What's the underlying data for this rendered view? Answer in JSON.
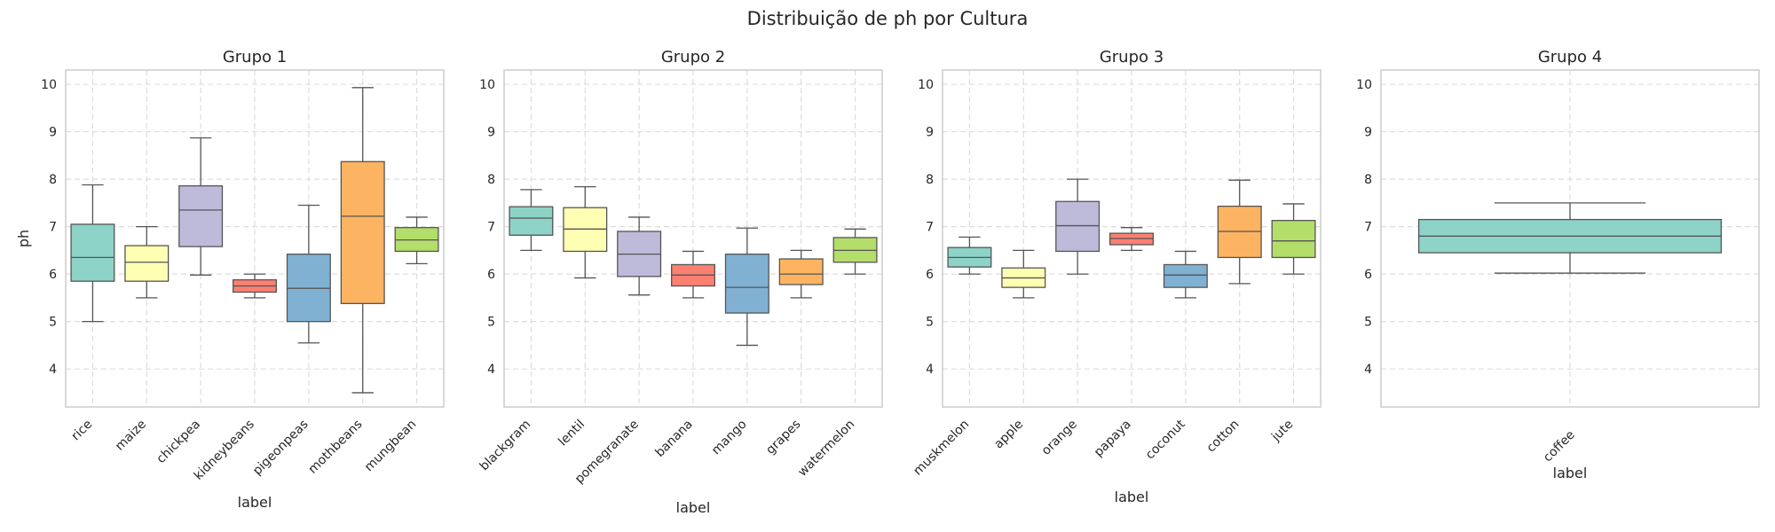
{
  "chart_data": {
    "type": "box",
    "title": "Distribuição de ph por Cultura",
    "ylabel": "ph",
    "xlabel": "label",
    "ylim": [
      3.2,
      10.3
    ],
    "yticks": [
      4,
      5,
      6,
      7,
      8,
      9,
      10
    ],
    "grid": true,
    "palette": [
      "#8dd3c7",
      "#ffffb3",
      "#bebada",
      "#fb8072",
      "#80b1d3",
      "#fdb462",
      "#b3de69"
    ],
    "panels": [
      {
        "title": "Grupo 1",
        "categories": [
          {
            "label": "rice",
            "min": 5.0,
            "q1": 5.85,
            "median": 6.35,
            "q3": 7.05,
            "max": 7.88
          },
          {
            "label": "maize",
            "min": 5.5,
            "q1": 5.85,
            "median": 6.25,
            "q3": 6.6,
            "max": 7.0
          },
          {
            "label": "chickpea",
            "min": 5.98,
            "q1": 6.58,
            "median": 7.35,
            "q3": 7.86,
            "max": 8.87
          },
          {
            "label": "kidneybeans",
            "min": 5.5,
            "q1": 5.62,
            "median": 5.75,
            "q3": 5.88,
            "max": 6.0
          },
          {
            "label": "pigeonpeas",
            "min": 4.55,
            "q1": 5.0,
            "median": 5.7,
            "q3": 6.42,
            "max": 7.45
          },
          {
            "label": "mothbeans",
            "min": 3.5,
            "q1": 5.38,
            "median": 7.22,
            "q3": 8.37,
            "max": 9.93
          },
          {
            "label": "mungbean",
            "min": 6.22,
            "q1": 6.48,
            "median": 6.72,
            "q3": 6.98,
            "max": 7.2
          }
        ]
      },
      {
        "title": "Grupo 2",
        "categories": [
          {
            "label": "blackgram",
            "min": 6.5,
            "q1": 6.82,
            "median": 7.18,
            "q3": 7.42,
            "max": 7.78
          },
          {
            "label": "lentil",
            "min": 5.92,
            "q1": 6.48,
            "median": 6.95,
            "q3": 7.4,
            "max": 7.84
          },
          {
            "label": "pomegranate",
            "min": 5.56,
            "q1": 5.95,
            "median": 6.42,
            "q3": 6.9,
            "max": 7.2
          },
          {
            "label": "banana",
            "min": 5.5,
            "q1": 5.75,
            "median": 5.98,
            "q3": 6.2,
            "max": 6.48
          },
          {
            "label": "mango",
            "min": 4.5,
            "q1": 5.18,
            "median": 5.72,
            "q3": 6.42,
            "max": 6.97
          },
          {
            "label": "grapes",
            "min": 5.5,
            "q1": 5.78,
            "median": 6.0,
            "q3": 6.32,
            "max": 6.5
          },
          {
            "label": "watermelon",
            "min": 6.0,
            "q1": 6.25,
            "median": 6.5,
            "q3": 6.77,
            "max": 6.95
          }
        ]
      },
      {
        "title": "Grupo 3",
        "categories": [
          {
            "label": "muskmelon",
            "min": 6.0,
            "q1": 6.15,
            "median": 6.35,
            "q3": 6.56,
            "max": 6.78
          },
          {
            "label": "apple",
            "min": 5.5,
            "q1": 5.72,
            "median": 5.92,
            "q3": 6.13,
            "max": 6.5
          },
          {
            "label": "orange",
            "min": 6.0,
            "q1": 6.48,
            "median": 7.02,
            "q3": 7.53,
            "max": 8.0
          },
          {
            "label": "papaya",
            "min": 6.5,
            "q1": 6.62,
            "median": 6.75,
            "q3": 6.86,
            "max": 6.98
          },
          {
            "label": "coconut",
            "min": 5.5,
            "q1": 5.72,
            "median": 5.98,
            "q3": 6.2,
            "max": 6.48
          },
          {
            "label": "cotton",
            "min": 5.8,
            "q1": 6.35,
            "median": 6.9,
            "q3": 7.43,
            "max": 7.98
          },
          {
            "label": "jute",
            "min": 6.0,
            "q1": 6.35,
            "median": 6.7,
            "q3": 7.13,
            "max": 7.48
          }
        ]
      },
      {
        "title": "Grupo 4",
        "categories": [
          {
            "label": "coffee",
            "min": 6.02,
            "q1": 6.45,
            "median": 6.8,
            "q3": 7.15,
            "max": 7.5
          }
        ]
      }
    ]
  }
}
